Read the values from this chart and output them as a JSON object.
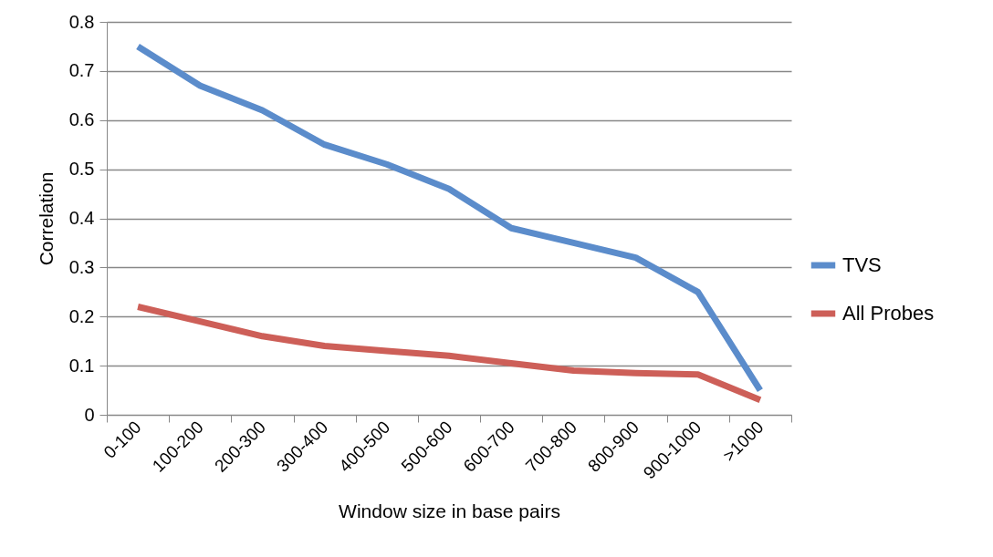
{
  "chart_data": {
    "type": "line",
    "xlabel": "Window size in base pairs",
    "ylabel": "Correlation",
    "categories": [
      "0-100",
      "100-200",
      "200-300",
      "300-400",
      "400-500",
      "500-600",
      "600-700",
      "700-800",
      "800-900",
      "900-1000",
      ">1000"
    ],
    "series": [
      {
        "name": "TVS",
        "color": "#5b8ccb",
        "values": [
          0.75,
          0.67,
          0.62,
          0.55,
          0.51,
          0.46,
          0.38,
          0.35,
          0.32,
          0.25,
          0.05
        ]
      },
      {
        "name": "All Probes",
        "color": "#cd5f58",
        "values": [
          0.22,
          0.19,
          0.16,
          0.14,
          0.13,
          0.12,
          0.105,
          0.09,
          0.085,
          0.082,
          0.03
        ]
      }
    ],
    "ylim": [
      0,
      0.8
    ],
    "yticks": [
      0,
      0.1,
      0.2,
      0.3,
      0.4,
      0.5,
      0.6,
      0.7,
      0.8
    ],
    "grid": "y",
    "legend": "right",
    "marker": "none",
    "line_style": "solid"
  }
}
